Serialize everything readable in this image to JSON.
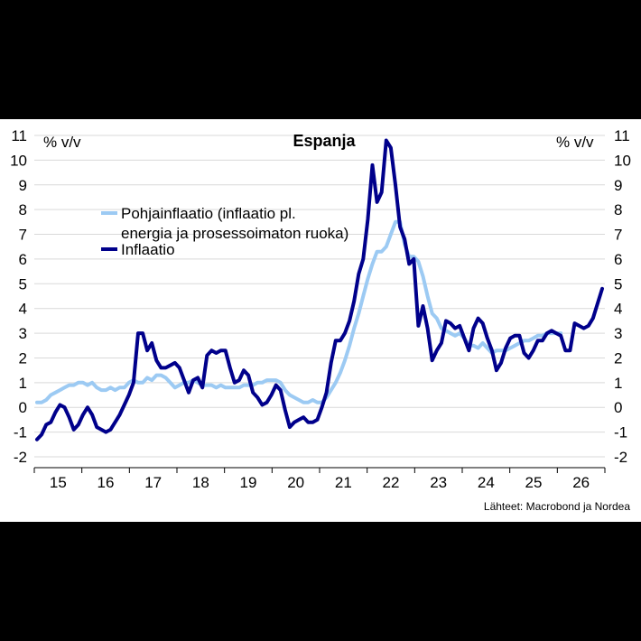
{
  "chart_data": {
    "type": "line",
    "title": "Espanja",
    "ylabel_left": "% v/v",
    "ylabel_right": "% v/v",
    "source": "Lähteet: Macrobond ja Nordea",
    "ylim": [
      -2,
      11
    ],
    "y_ticks": [
      "-2",
      "-1",
      "0",
      "1",
      "2",
      "3",
      "4",
      "5",
      "6",
      "7",
      "8",
      "9",
      "10",
      "11"
    ],
    "x_ticks": [
      "15",
      "16",
      "17",
      "18",
      "19",
      "20",
      "21",
      "22",
      "23",
      "24",
      "25",
      "26"
    ],
    "grid": true,
    "legend_position": "upper-left",
    "series": [
      {
        "name": "Pohjainflaatio (inflaatio pl. energia ja prosessoimaton ruoka)",
        "legend_lines": [
          "Pohjainflaatio (inflaatio pl.",
          "energia ja prosessoimaton ruoka)"
        ],
        "color": "#9ccaf3",
        "points": [
          [
            2015.0,
            0.2
          ],
          [
            2015.1,
            0.2
          ],
          [
            2015.2,
            0.3
          ],
          [
            2015.3,
            0.5
          ],
          [
            2015.4,
            0.6
          ],
          [
            2015.5,
            0.7
          ],
          [
            2015.6,
            0.8
          ],
          [
            2015.7,
            0.9
          ],
          [
            2015.8,
            0.9
          ],
          [
            2015.9,
            1.0
          ],
          [
            2016.0,
            1.0
          ],
          [
            2016.1,
            0.9
          ],
          [
            2016.2,
            1.0
          ],
          [
            2016.3,
            0.8
          ],
          [
            2016.4,
            0.7
          ],
          [
            2016.5,
            0.7
          ],
          [
            2016.6,
            0.8
          ],
          [
            2016.7,
            0.7
          ],
          [
            2016.8,
            0.8
          ],
          [
            2016.9,
            0.8
          ],
          [
            2017.0,
            1.0
          ],
          [
            2017.1,
            1.1
          ],
          [
            2017.2,
            1.0
          ],
          [
            2017.3,
            1.0
          ],
          [
            2017.4,
            1.2
          ],
          [
            2017.5,
            1.1
          ],
          [
            2017.6,
            1.3
          ],
          [
            2017.7,
            1.3
          ],
          [
            2017.8,
            1.2
          ],
          [
            2017.9,
            1.0
          ],
          [
            2018.0,
            0.8
          ],
          [
            2018.1,
            0.9
          ],
          [
            2018.2,
            1.0
          ],
          [
            2018.3,
            1.0
          ],
          [
            2018.4,
            1.1
          ],
          [
            2018.5,
            1.0
          ],
          [
            2018.6,
            0.9
          ],
          [
            2018.7,
            0.9
          ],
          [
            2018.8,
            0.9
          ],
          [
            2018.9,
            0.8
          ],
          [
            2019.0,
            0.9
          ],
          [
            2019.1,
            0.8
          ],
          [
            2019.2,
            0.8
          ],
          [
            2019.3,
            0.8
          ],
          [
            2019.4,
            0.8
          ],
          [
            2019.5,
            0.9
          ],
          [
            2019.6,
            0.9
          ],
          [
            2019.7,
            0.9
          ],
          [
            2019.8,
            1.0
          ],
          [
            2019.9,
            1.0
          ],
          [
            2020.0,
            1.1
          ],
          [
            2020.1,
            1.1
          ],
          [
            2020.2,
            1.1
          ],
          [
            2020.3,
            1.0
          ],
          [
            2020.4,
            0.7
          ],
          [
            2020.5,
            0.5
          ],
          [
            2020.6,
            0.4
          ],
          [
            2020.7,
            0.3
          ],
          [
            2020.8,
            0.2
          ],
          [
            2020.9,
            0.2
          ],
          [
            2021.0,
            0.3
          ],
          [
            2021.1,
            0.2
          ],
          [
            2021.2,
            0.2
          ],
          [
            2021.3,
            0.4
          ],
          [
            2021.4,
            0.7
          ],
          [
            2021.5,
            1.0
          ],
          [
            2021.6,
            1.4
          ],
          [
            2021.7,
            1.9
          ],
          [
            2021.8,
            2.5
          ],
          [
            2021.9,
            3.2
          ],
          [
            2022.0,
            3.8
          ],
          [
            2022.1,
            4.5
          ],
          [
            2022.2,
            5.2
          ],
          [
            2022.3,
            5.8
          ],
          [
            2022.4,
            6.3
          ],
          [
            2022.5,
            6.3
          ],
          [
            2022.6,
            6.5
          ],
          [
            2022.7,
            7.0
          ],
          [
            2022.8,
            7.5
          ],
          [
            2022.9,
            7.5
          ],
          [
            2023.0,
            6.6
          ],
          [
            2023.1,
            6.1
          ],
          [
            2023.2,
            6.1
          ],
          [
            2023.3,
            5.9
          ],
          [
            2023.4,
            5.3
          ],
          [
            2023.5,
            4.5
          ],
          [
            2023.6,
            3.8
          ],
          [
            2023.7,
            3.6
          ],
          [
            2023.8,
            3.2
          ],
          [
            2023.9,
            3.1
          ],
          [
            2024.0,
            3.0
          ],
          [
            2024.1,
            2.9
          ],
          [
            2024.2,
            3.0
          ],
          [
            2024.3,
            2.8
          ],
          [
            2024.4,
            2.5
          ],
          [
            2024.5,
            2.5
          ],
          [
            2024.6,
            2.4
          ],
          [
            2024.7,
            2.6
          ],
          [
            2024.8,
            2.4
          ],
          [
            2024.9,
            2.2
          ],
          [
            2025.0,
            2.3
          ],
          [
            2025.1,
            2.3
          ],
          [
            2025.2,
            2.3
          ],
          [
            2025.3,
            2.4
          ],
          [
            2025.4,
            2.5
          ],
          [
            2025.5,
            2.6
          ],
          [
            2025.6,
            2.7
          ],
          [
            2025.7,
            2.7
          ],
          [
            2025.8,
            2.8
          ],
          [
            2025.9,
            2.9
          ],
          [
            2026.0,
            2.9
          ],
          [
            2026.1,
            3.0
          ],
          [
            2026.2,
            3.0
          ],
          [
            2026.3,
            3.0
          ],
          [
            2026.4,
            3.0
          ]
        ]
      },
      {
        "name": "Inflaatio",
        "legend_lines": [
          "Inflaatio"
        ],
        "color": "#00008b",
        "points": [
          [
            2015.0,
            -1.3
          ],
          [
            2015.1,
            -1.1
          ],
          [
            2015.2,
            -0.7
          ],
          [
            2015.3,
            -0.6
          ],
          [
            2015.4,
            -0.2
          ],
          [
            2015.5,
            0.1
          ],
          [
            2015.6,
            0.0
          ],
          [
            2015.7,
            -0.4
          ],
          [
            2015.8,
            -0.9
          ],
          [
            2015.9,
            -0.7
          ],
          [
            2016.0,
            -0.3
          ],
          [
            2016.1,
            0.0
          ],
          [
            2016.2,
            -0.3
          ],
          [
            2016.3,
            -0.8
          ],
          [
            2016.4,
            -0.9
          ],
          [
            2016.5,
            -1.0
          ],
          [
            2016.6,
            -0.9
          ],
          [
            2016.7,
            -0.6
          ],
          [
            2016.8,
            -0.3
          ],
          [
            2016.9,
            0.1
          ],
          [
            2017.0,
            0.5
          ],
          [
            2017.1,
            1.0
          ],
          [
            2017.2,
            3.0
          ],
          [
            2017.3,
            3.0
          ],
          [
            2017.4,
            2.3
          ],
          [
            2017.5,
            2.6
          ],
          [
            2017.6,
            1.9
          ],
          [
            2017.7,
            1.6
          ],
          [
            2017.8,
            1.6
          ],
          [
            2017.9,
            1.7
          ],
          [
            2018.0,
            1.8
          ],
          [
            2018.1,
            1.6
          ],
          [
            2018.2,
            1.1
          ],
          [
            2018.3,
            0.6
          ],
          [
            2018.4,
            1.1
          ],
          [
            2018.5,
            1.2
          ],
          [
            2018.6,
            0.8
          ],
          [
            2018.7,
            2.1
          ],
          [
            2018.8,
            2.3
          ],
          [
            2018.9,
            2.2
          ],
          [
            2019.0,
            2.3
          ],
          [
            2019.1,
            2.3
          ],
          [
            2019.2,
            1.6
          ],
          [
            2019.3,
            1.0
          ],
          [
            2019.4,
            1.1
          ],
          [
            2019.5,
            1.5
          ],
          [
            2019.6,
            1.3
          ],
          [
            2019.7,
            0.6
          ],
          [
            2019.8,
            0.4
          ],
          [
            2019.9,
            0.1
          ],
          [
            2020.0,
            0.2
          ],
          [
            2020.1,
            0.5
          ],
          [
            2020.2,
            0.9
          ],
          [
            2020.3,
            0.7
          ],
          [
            2020.4,
            -0.1
          ],
          [
            2020.5,
            -0.8
          ],
          [
            2020.6,
            -0.6
          ],
          [
            2020.7,
            -0.5
          ],
          [
            2020.8,
            -0.4
          ],
          [
            2020.9,
            -0.6
          ],
          [
            2021.0,
            -0.6
          ],
          [
            2021.1,
            -0.5
          ],
          [
            2021.2,
            0.0
          ],
          [
            2021.3,
            0.6
          ],
          [
            2021.4,
            1.8
          ],
          [
            2021.5,
            2.7
          ],
          [
            2021.6,
            2.7
          ],
          [
            2021.7,
            3.0
          ],
          [
            2021.8,
            3.5
          ],
          [
            2021.9,
            4.3
          ],
          [
            2022.0,
            5.4
          ],
          [
            2022.1,
            6.0
          ],
          [
            2022.2,
            7.6
          ],
          [
            2022.3,
            9.8
          ],
          [
            2022.4,
            8.3
          ],
          [
            2022.5,
            8.7
          ],
          [
            2022.6,
            10.8
          ],
          [
            2022.7,
            10.5
          ],
          [
            2022.8,
            9.0
          ],
          [
            2022.9,
            7.3
          ],
          [
            2023.0,
            6.8
          ],
          [
            2023.1,
            5.8
          ],
          [
            2023.2,
            6.0
          ],
          [
            2023.3,
            3.3
          ],
          [
            2023.4,
            4.1
          ],
          [
            2023.5,
            3.2
          ],
          [
            2023.6,
            1.9
          ],
          [
            2023.7,
            2.3
          ],
          [
            2023.8,
            2.6
          ],
          [
            2023.9,
            3.5
          ],
          [
            2024.0,
            3.4
          ],
          [
            2024.1,
            3.2
          ],
          [
            2024.2,
            3.3
          ],
          [
            2024.3,
            2.8
          ],
          [
            2024.4,
            2.3
          ],
          [
            2024.5,
            3.2
          ],
          [
            2024.6,
            3.6
          ],
          [
            2024.7,
            3.4
          ],
          [
            2024.8,
            2.8
          ],
          [
            2024.9,
            2.3
          ],
          [
            2025.0,
            1.5
          ],
          [
            2025.1,
            1.8
          ],
          [
            2025.2,
            2.4
          ],
          [
            2025.3,
            2.8
          ],
          [
            2025.4,
            2.9
          ],
          [
            2025.5,
            2.9
          ],
          [
            2025.6,
            2.2
          ],
          [
            2025.7,
            2.0
          ],
          [
            2025.8,
            2.3
          ],
          [
            2025.9,
            2.7
          ],
          [
            2026.0,
            2.7
          ],
          [
            2026.1,
            3.0
          ],
          [
            2026.2,
            3.1
          ],
          [
            2026.3,
            3.0
          ],
          [
            2026.4,
            2.9
          ],
          [
            2026.5,
            2.3
          ],
          [
            2026.6,
            2.3
          ],
          [
            2026.7,
            3.4
          ],
          [
            2026.8,
            3.3
          ],
          [
            2026.9,
            3.2
          ],
          [
            2027.0,
            3.3
          ],
          [
            2027.1,
            3.6
          ],
          [
            2027.2,
            4.2
          ],
          [
            2027.3,
            4.8
          ]
        ]
      }
    ]
  }
}
